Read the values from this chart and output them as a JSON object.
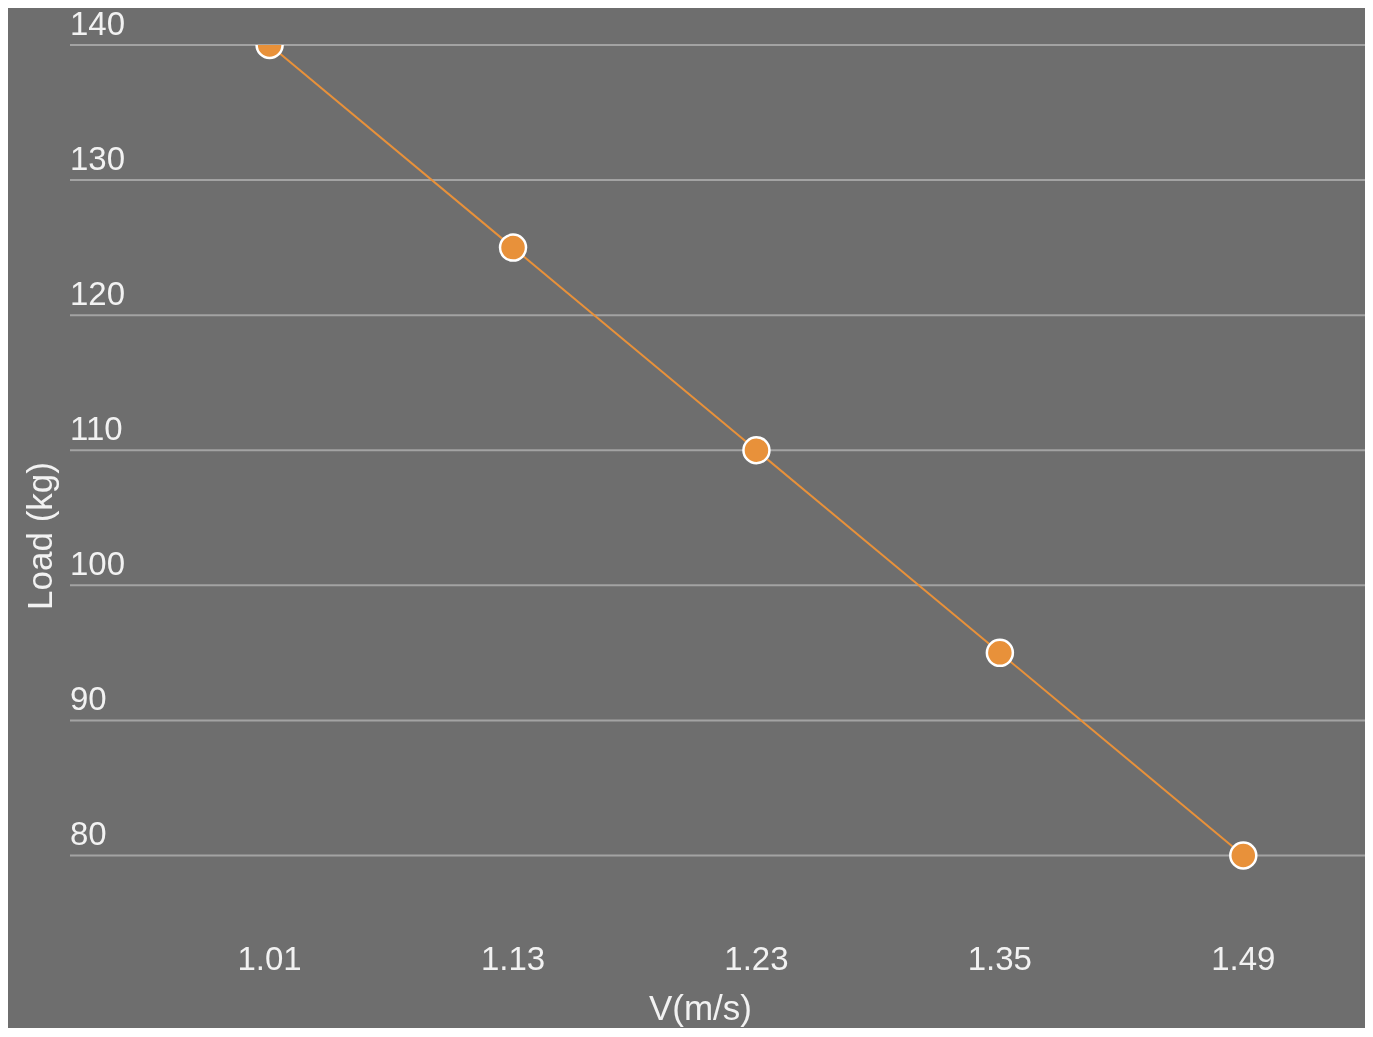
{
  "chart_data": {
    "type": "line",
    "xlabel": "V(m/s)",
    "ylabel": "Load (kg)",
    "categories": [
      "1.01",
      "1.13",
      "1.23",
      "1.35",
      "1.49"
    ],
    "series": [
      {
        "color": "#e8913a",
        "values": [
          140,
          125,
          110,
          95,
          80
        ]
      }
    ],
    "ylim": [
      67.3,
      140
    ],
    "yticks": [
      80,
      90,
      100,
      110,
      120,
      130,
      140
    ],
    "grid": "y",
    "marker": "circle",
    "line_style": "solid"
  }
}
